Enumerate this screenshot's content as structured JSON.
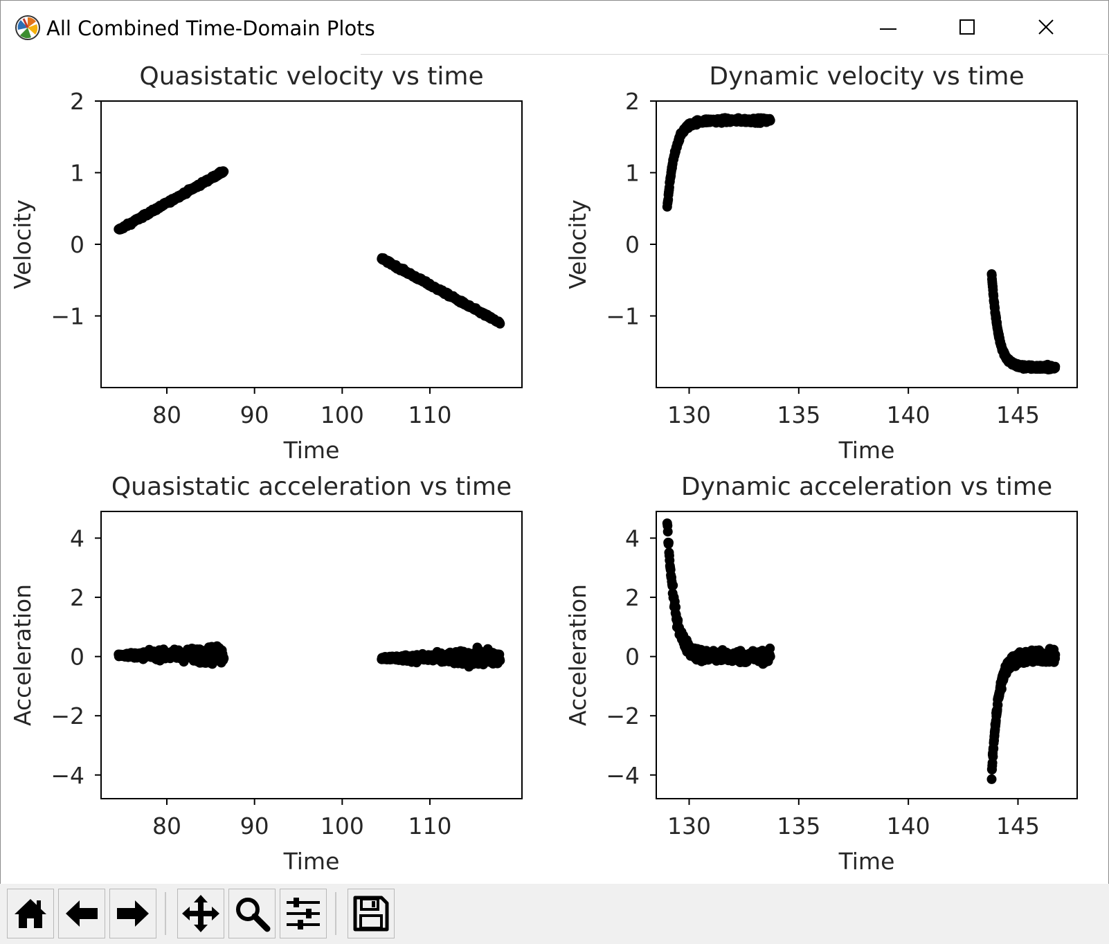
{
  "window": {
    "title": "All Combined Time-Domain Plots",
    "controls": [
      "minimize",
      "maximize",
      "close"
    ]
  },
  "toolbar": {
    "buttons": [
      {
        "name": "home",
        "icon": "home-icon"
      },
      {
        "name": "back",
        "icon": "arrow-left-icon"
      },
      {
        "name": "forward",
        "icon": "arrow-right-icon"
      },
      {
        "name": "pan",
        "icon": "move-icon"
      },
      {
        "name": "zoom",
        "icon": "magnifier-icon"
      },
      {
        "name": "configure-subplots",
        "icon": "sliders-icon"
      },
      {
        "name": "save",
        "icon": "floppy-disk-icon"
      }
    ]
  },
  "chart_data": [
    {
      "type": "scatter",
      "title": "Quasistatic velocity vs time",
      "xlabel": "Time",
      "ylabel": "Velocity",
      "xlim": [
        72.5,
        120.5
      ],
      "ylim": [
        -2,
        2
      ],
      "xticks": [
        80,
        90,
        100,
        110
      ],
      "yticks": [
        -1,
        0,
        1,
        2
      ],
      "color": "#000000",
      "segments": [
        {
          "x_start": 74.5,
          "x_end": 86.5,
          "y_start": 0.2,
          "y_end": 1.02,
          "noise": 0.02
        },
        {
          "x_start": 104.5,
          "x_end": 118.0,
          "y_start": -0.2,
          "y_end": -1.1,
          "noise": 0.02
        }
      ]
    },
    {
      "type": "scatter",
      "title": "Dynamic velocity vs time",
      "xlabel": "Time",
      "ylabel": "Velocity",
      "xlim": [
        128.5,
        147.7
      ],
      "ylim": [
        -2,
        2
      ],
      "xticks": [
        130,
        135,
        140,
        145
      ],
      "yticks": [
        -1,
        0,
        1,
        2
      ],
      "color": "#000000",
      "segments": [
        {
          "x_start": 129.0,
          "x_end": 133.7,
          "start_value": 0.5,
          "end_value": 1.73,
          "rise_time": 0.35,
          "noise": 0.03
        },
        {
          "x_start": 143.8,
          "x_end": 146.7,
          "start_value": -0.4,
          "end_value": -1.72,
          "rise_time": 0.3,
          "noise": 0.03
        }
      ]
    },
    {
      "type": "scatter",
      "title": "Quasistatic acceleration vs time",
      "xlabel": "Time",
      "ylabel": "Acceleration",
      "xlim": [
        72.5,
        120.5
      ],
      "ylim": [
        -4.8,
        4.9
      ],
      "xticks": [
        80,
        90,
        100,
        110
      ],
      "yticks": [
        -4,
        -2,
        0,
        2,
        4
      ],
      "color": "#000000",
      "segments": [
        {
          "x_start": 74.5,
          "x_end": 86.5,
          "center": 0.05,
          "spread_start": 0.05,
          "spread_end": 0.3
        },
        {
          "x_start": 104.5,
          "x_end": 118.0,
          "center": -0.05,
          "spread_start": 0.05,
          "spread_end": 0.3
        }
      ]
    },
    {
      "type": "scatter",
      "title": "Dynamic acceleration vs time",
      "xlabel": "Time",
      "ylabel": "Acceleration",
      "xlim": [
        128.5,
        147.7
      ],
      "ylim": [
        -4.8,
        4.9
      ],
      "xticks": [
        130,
        135,
        140,
        145
      ],
      "yticks": [
        -4,
        -2,
        0,
        2,
        4
      ],
      "color": "#000000",
      "segments": [
        {
          "x_start": 129.0,
          "x_end": 133.7,
          "start_value": 4.5,
          "end_value": 0.0,
          "rise_time": 0.35,
          "noise": 0.2
        },
        {
          "x_start": 143.8,
          "x_end": 146.7,
          "start_value": -4.0,
          "end_value": 0.0,
          "rise_time": 0.3,
          "noise": 0.2
        }
      ]
    }
  ]
}
